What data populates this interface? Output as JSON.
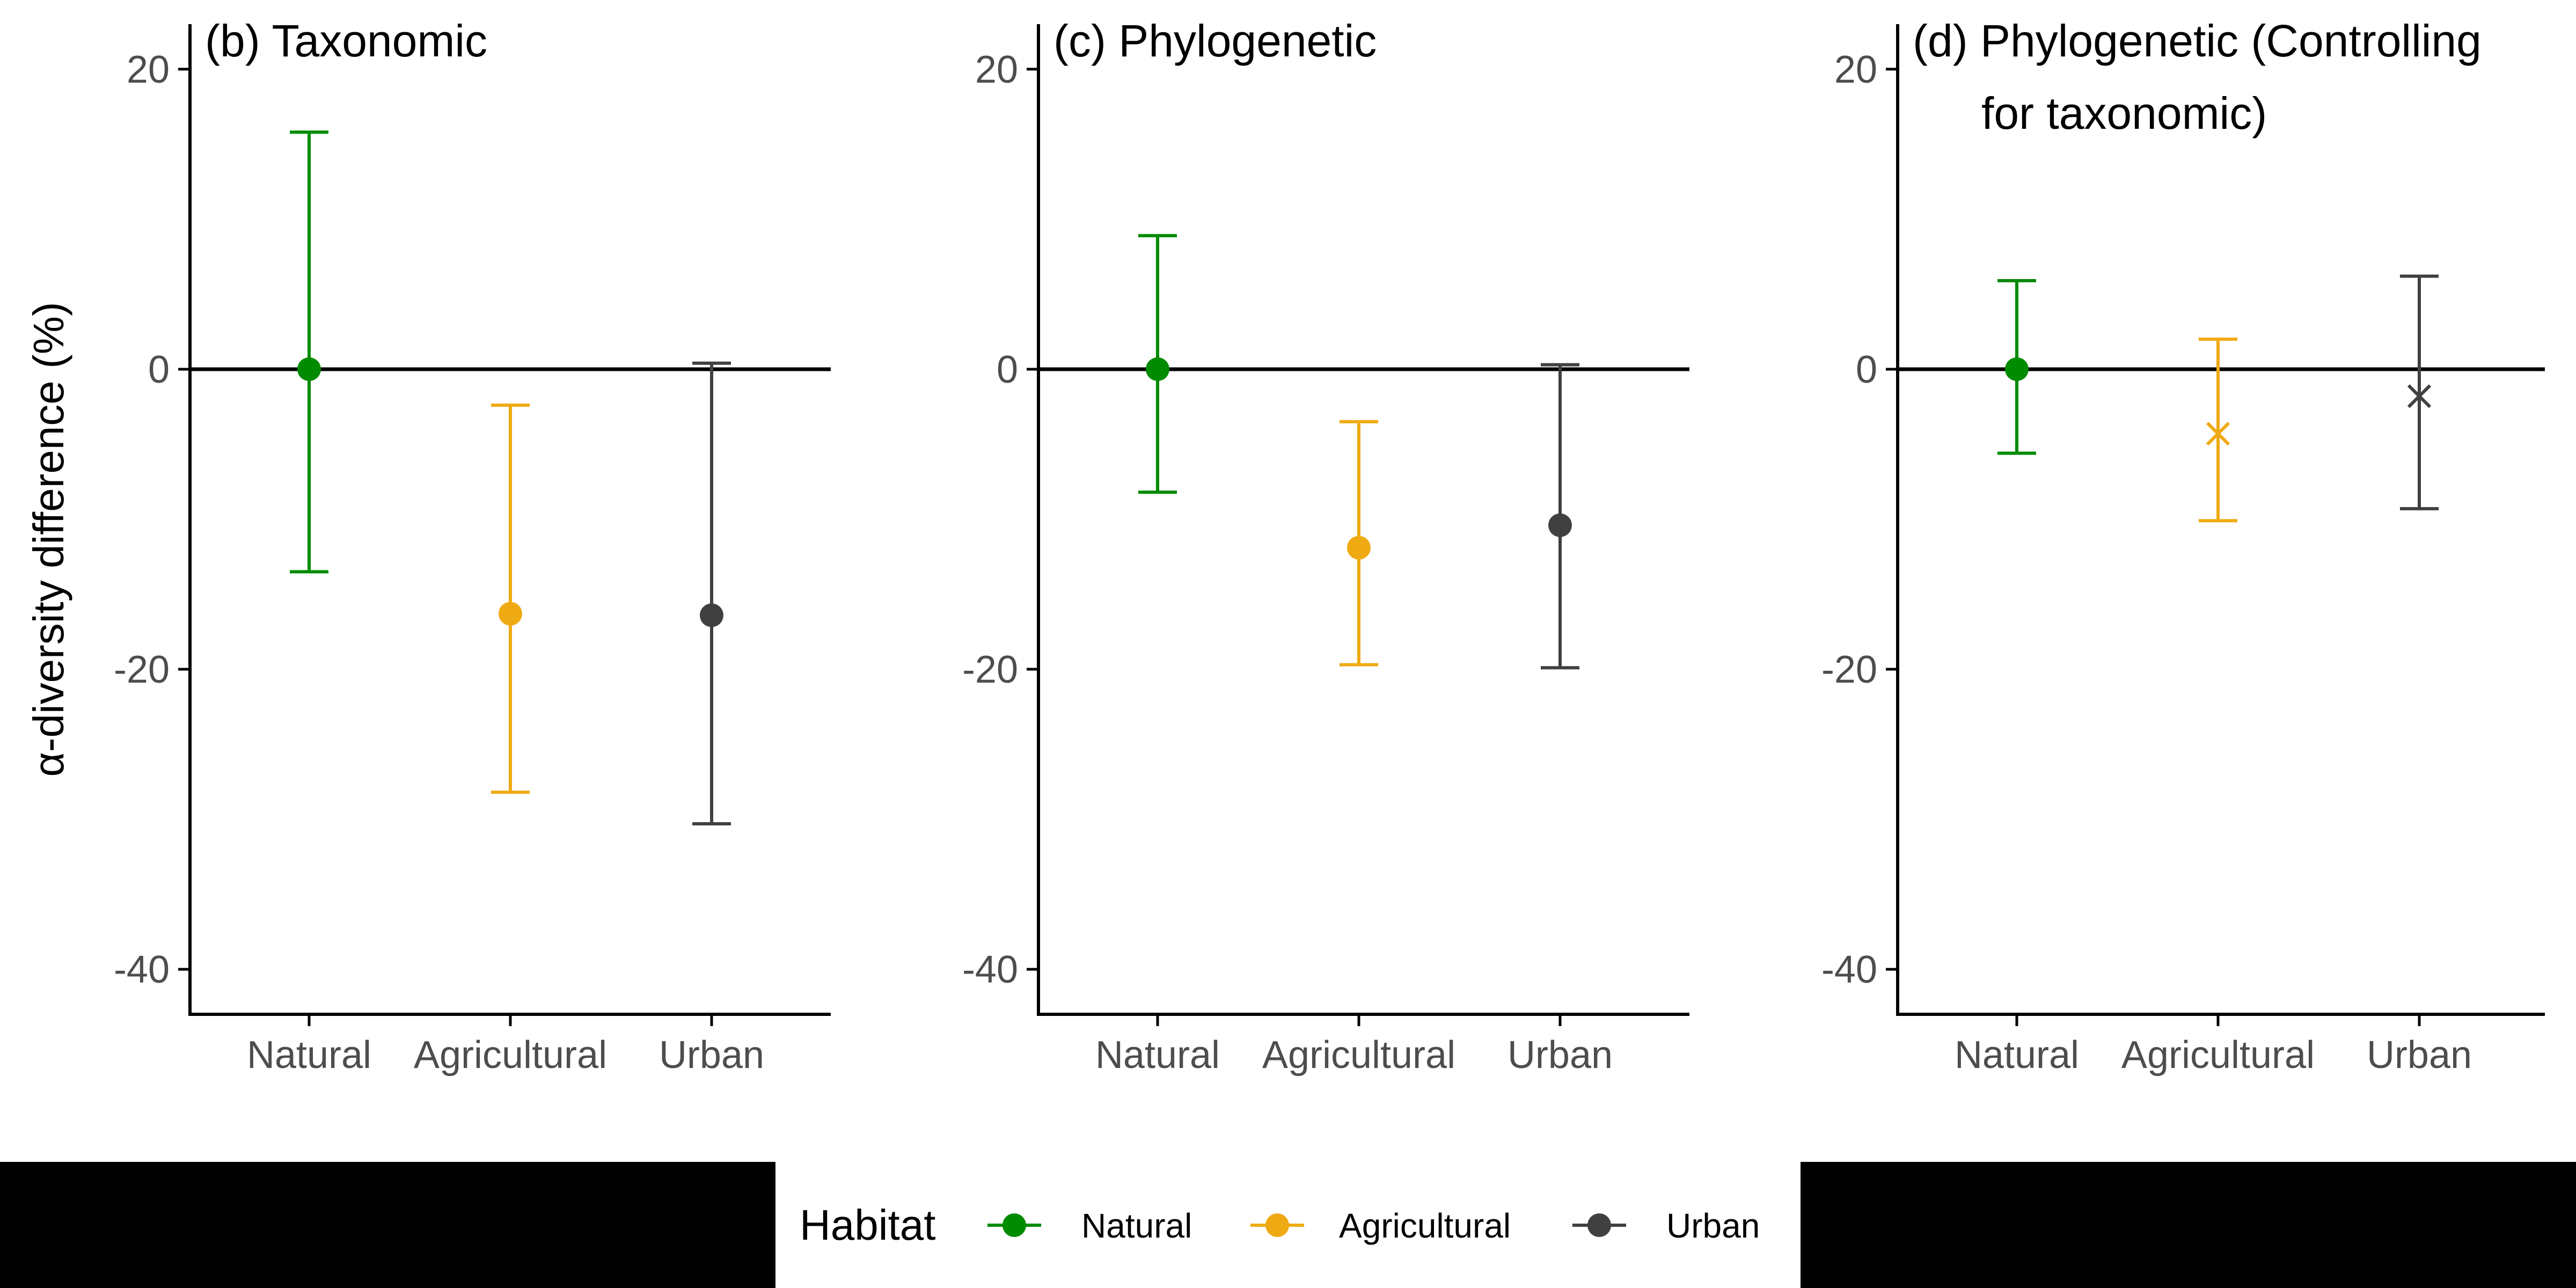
{
  "colors": {
    "Natural": "#008b00",
    "Agricultural": "#efaa13",
    "Urban": "#404040",
    "axis": "#000000",
    "band": "#000000"
  },
  "legend": {
    "title": "Habitat",
    "items": [
      "Natural",
      "Agricultural",
      "Urban"
    ],
    "position": "bottom"
  },
  "chart_data": [
    {
      "type": "errorbar",
      "title": "(b) Taxonomic",
      "ylabel": "α-diversity difference (%)",
      "ylim": [
        -43,
        23
      ],
      "yticks": [
        20,
        0,
        -20,
        -40
      ],
      "categories": [
        "Natural",
        "Agricultural",
        "Urban"
      ],
      "series": [
        {
          "name": "Natural",
          "value": 0,
          "lower": -13.5,
          "upper": 15.8,
          "marker": "circle"
        },
        {
          "name": "Agricultural",
          "value": -16.3,
          "lower": -28.2,
          "upper": -2.4,
          "marker": "circle"
        },
        {
          "name": "Urban",
          "value": -16.4,
          "lower": -30.3,
          "upper": 0.4,
          "marker": "circle"
        }
      ]
    },
    {
      "type": "errorbar",
      "title": "(c) Phylogenetic",
      "ylabel": "",
      "ylim": [
        -43,
        23
      ],
      "yticks": [
        20,
        0,
        -20,
        -40
      ],
      "categories": [
        "Natural",
        "Agricultural",
        "Urban"
      ],
      "series": [
        {
          "name": "Natural",
          "value": 0,
          "lower": -8.2,
          "upper": 8.9,
          "marker": "circle"
        },
        {
          "name": "Agricultural",
          "value": -11.9,
          "lower": -19.7,
          "upper": -3.5,
          "marker": "circle"
        },
        {
          "name": "Urban",
          "value": -10.4,
          "lower": -19.9,
          "upper": 0.3,
          "marker": "circle"
        }
      ]
    },
    {
      "type": "errorbar",
      "title": "(d) Phylogenetic (Controlling\nfor taxonomic)",
      "ylabel": "",
      "ylim": [
        -43,
        23
      ],
      "yticks": [
        20,
        0,
        -20,
        -40
      ],
      "categories": [
        "Natural",
        "Agricultural",
        "Urban"
      ],
      "series": [
        {
          "name": "Natural",
          "value": 0,
          "lower": -5.6,
          "upper": 5.9,
          "marker": "circle"
        },
        {
          "name": "Agricultural",
          "value": -4.3,
          "lower": -10.1,
          "upper": 2.0,
          "marker": "cross"
        },
        {
          "name": "Urban",
          "value": -1.8,
          "lower": -9.3,
          "upper": 6.2,
          "marker": "cross"
        }
      ]
    }
  ]
}
